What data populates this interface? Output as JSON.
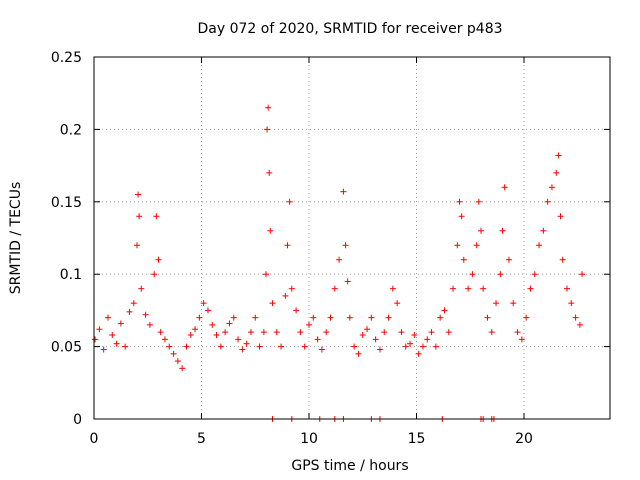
{
  "chart_data": {
    "type": "scatter",
    "title": "Day 072 of 2020, SRMTID for receiver p483",
    "xlabel": "GPS time / hours",
    "ylabel": "SRMTID / TECUs",
    "xlim": [
      0,
      24
    ],
    "ylim": [
      0,
      0.25
    ],
    "xticks": [
      0,
      5,
      10,
      15,
      20
    ],
    "yticks": [
      0,
      0.05,
      0.1,
      0.15,
      0.2,
      0.25
    ],
    "xtick_labels": [
      "0",
      "5",
      "10",
      "15",
      "20"
    ],
    "ytick_labels": [
      "0",
      "0.05",
      "0.1",
      "0.15",
      "0.2",
      "0.25"
    ],
    "grid": true,
    "marker": "+",
    "color": "#ff0000",
    "series": [
      {
        "name": "SRMTID",
        "x": [
          0.05,
          0.25,
          0.45,
          0.65,
          0.85,
          1.05,
          1.25,
          1.45,
          1.65,
          1.85,
          2.0,
          2.05,
          2.1,
          2.2,
          2.4,
          2.6,
          2.8,
          2.9,
          3.0,
          3.1,
          3.3,
          3.5,
          3.7,
          3.9,
          4.1,
          4.3,
          4.5,
          4.7,
          4.9,
          5.1,
          5.3,
          5.5,
          5.7,
          5.9,
          6.1,
          6.3,
          6.5,
          6.7,
          6.9,
          7.1,
          7.3,
          7.5,
          7.7,
          7.9,
          8.0,
          8.05,
          8.1,
          8.15,
          8.2,
          8.3,
          8.5,
          8.7,
          8.9,
          9.0,
          9.1,
          9.2,
          9.4,
          9.6,
          9.8,
          10.0,
          10.2,
          10.4,
          10.6,
          10.8,
          11.0,
          11.2,
          11.4,
          11.6,
          11.7,
          11.8,
          11.9,
          12.1,
          12.3,
          12.5,
          12.7,
          12.9,
          13.1,
          13.3,
          13.5,
          13.7,
          13.9,
          14.1,
          14.3,
          14.5,
          14.7,
          14.9,
          15.1,
          15.3,
          15.5,
          15.7,
          15.9,
          16.1,
          16.3,
          16.5,
          16.7,
          16.9,
          17.0,
          17.1,
          17.2,
          17.4,
          17.6,
          17.8,
          17.9,
          18.0,
          18.1,
          18.3,
          18.5,
          18.7,
          18.9,
          19.0,
          19.1,
          19.3,
          19.5,
          19.7,
          19.9,
          20.1,
          20.3,
          20.5,
          20.7,
          20.9,
          21.1,
          21.3,
          21.5,
          21.6,
          21.7,
          21.8,
          22.0,
          22.2,
          22.4,
          22.6,
          22.7,
          8.3,
          9.2,
          10.5,
          11.2,
          11.6,
          12.9,
          13.3,
          16.2,
          18.0,
          18.1,
          18.5,
          18.6
        ],
        "y": [
          0.055,
          0.062,
          0.048,
          0.07,
          0.058,
          0.052,
          0.066,
          0.05,
          0.074,
          0.08,
          0.12,
          0.155,
          0.14,
          0.09,
          0.072,
          0.065,
          0.1,
          0.14,
          0.11,
          0.06,
          0.055,
          0.05,
          0.045,
          0.04,
          0.035,
          0.05,
          0.058,
          0.062,
          0.07,
          0.08,
          0.075,
          0.065,
          0.058,
          0.05,
          0.06,
          0.066,
          0.07,
          0.055,
          0.048,
          0.052,
          0.06,
          0.07,
          0.05,
          0.06,
          0.1,
          0.2,
          0.215,
          0.17,
          0.13,
          0.08,
          0.06,
          0.05,
          0.085,
          0.12,
          0.15,
          0.09,
          0.075,
          0.06,
          0.05,
          0.065,
          0.07,
          0.055,
          0.048,
          0.06,
          0.07,
          0.09,
          0.11,
          0.157,
          0.12,
          0.095,
          0.07,
          0.05,
          0.045,
          0.058,
          0.062,
          0.07,
          0.055,
          0.048,
          0.06,
          0.07,
          0.09,
          0.08,
          0.06,
          0.05,
          0.052,
          0.058,
          0.045,
          0.05,
          0.055,
          0.06,
          0.05,
          0.07,
          0.075,
          0.06,
          0.09,
          0.12,
          0.15,
          0.14,
          0.11,
          0.09,
          0.1,
          0.12,
          0.15,
          0.13,
          0.09,
          0.07,
          0.06,
          0.08,
          0.1,
          0.13,
          0.16,
          0.11,
          0.08,
          0.06,
          0.055,
          0.07,
          0.09,
          0.1,
          0.12,
          0.13,
          0.15,
          0.16,
          0.17,
          0.182,
          0.14,
          0.11,
          0.09,
          0.08,
          0.07,
          0.065,
          0.1,
          0.0,
          0.0,
          0.0,
          0.0,
          0.0,
          0.0,
          0.0,
          0.0,
          0.0,
          0.0,
          0.0,
          0.0
        ]
      }
    ]
  }
}
